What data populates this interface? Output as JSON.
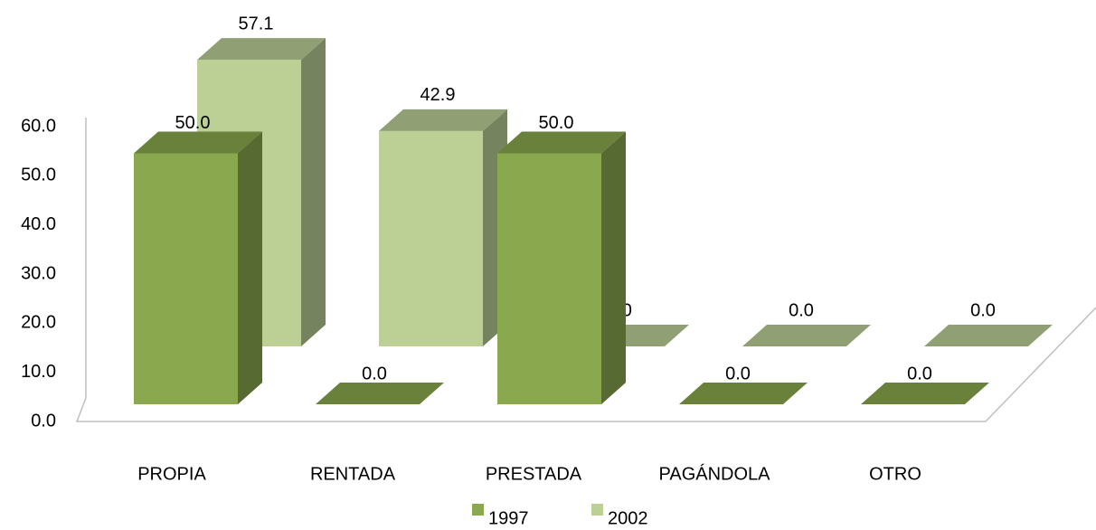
{
  "chart_data": {
    "type": "bar3d",
    "categories": [
      "PROPIA",
      "RENTADA",
      "PRESTADA",
      "PAGÁNDOLA",
      "OTRO"
    ],
    "series": [
      {
        "name": "1997",
        "color": "#8aa84e",
        "values": [
          50,
          0,
          50,
          0,
          0
        ],
        "value_labels": [
          "50.0",
          "0.0",
          "50.0",
          "0.0",
          "0.0"
        ]
      },
      {
        "name": "2002",
        "color": "#bcd096",
        "values": [
          57.1,
          42.9,
          0,
          0,
          0
        ],
        "value_labels": [
          "57.1",
          "42.9",
          "0.0",
          "0.0",
          "0.0"
        ]
      }
    ],
    "ylim": [
      0,
      60
    ],
    "yticks": [
      {
        "value": 0,
        "label": "0.0"
      },
      {
        "value": 10,
        "label": "10.0"
      },
      {
        "value": 20,
        "label": "20.0"
      },
      {
        "value": 30,
        "label": "30.0"
      },
      {
        "value": 40,
        "label": "40.0"
      },
      {
        "value": 50,
        "label": "50.0"
      },
      {
        "value": 60,
        "label": "60.0"
      }
    ],
    "legend": "bottom"
  }
}
